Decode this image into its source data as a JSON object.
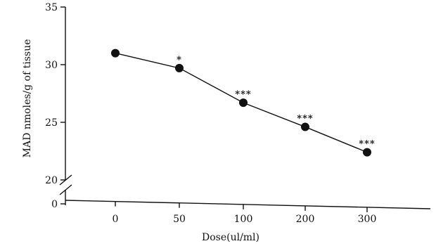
{
  "chart_data": {
    "type": "line",
    "xlabel": "Dose(ul/ml)",
    "ylabel": "MAD nmoles/g of tissue",
    "categories": [
      "0",
      "50",
      "100",
      "200",
      "300"
    ],
    "y_ticks": [
      "35",
      "30",
      "25",
      "20",
      "0"
    ],
    "series": [
      {
        "values": [
          31.0,
          29.7,
          26.7,
          24.6,
          22.4
        ]
      }
    ],
    "annotations": [
      "*",
      "***",
      "***",
      "***"
    ],
    "ylim": [
      20,
      35
    ],
    "axis_break": {
      "between": [
        0,
        20
      ]
    },
    "grid": false
  }
}
